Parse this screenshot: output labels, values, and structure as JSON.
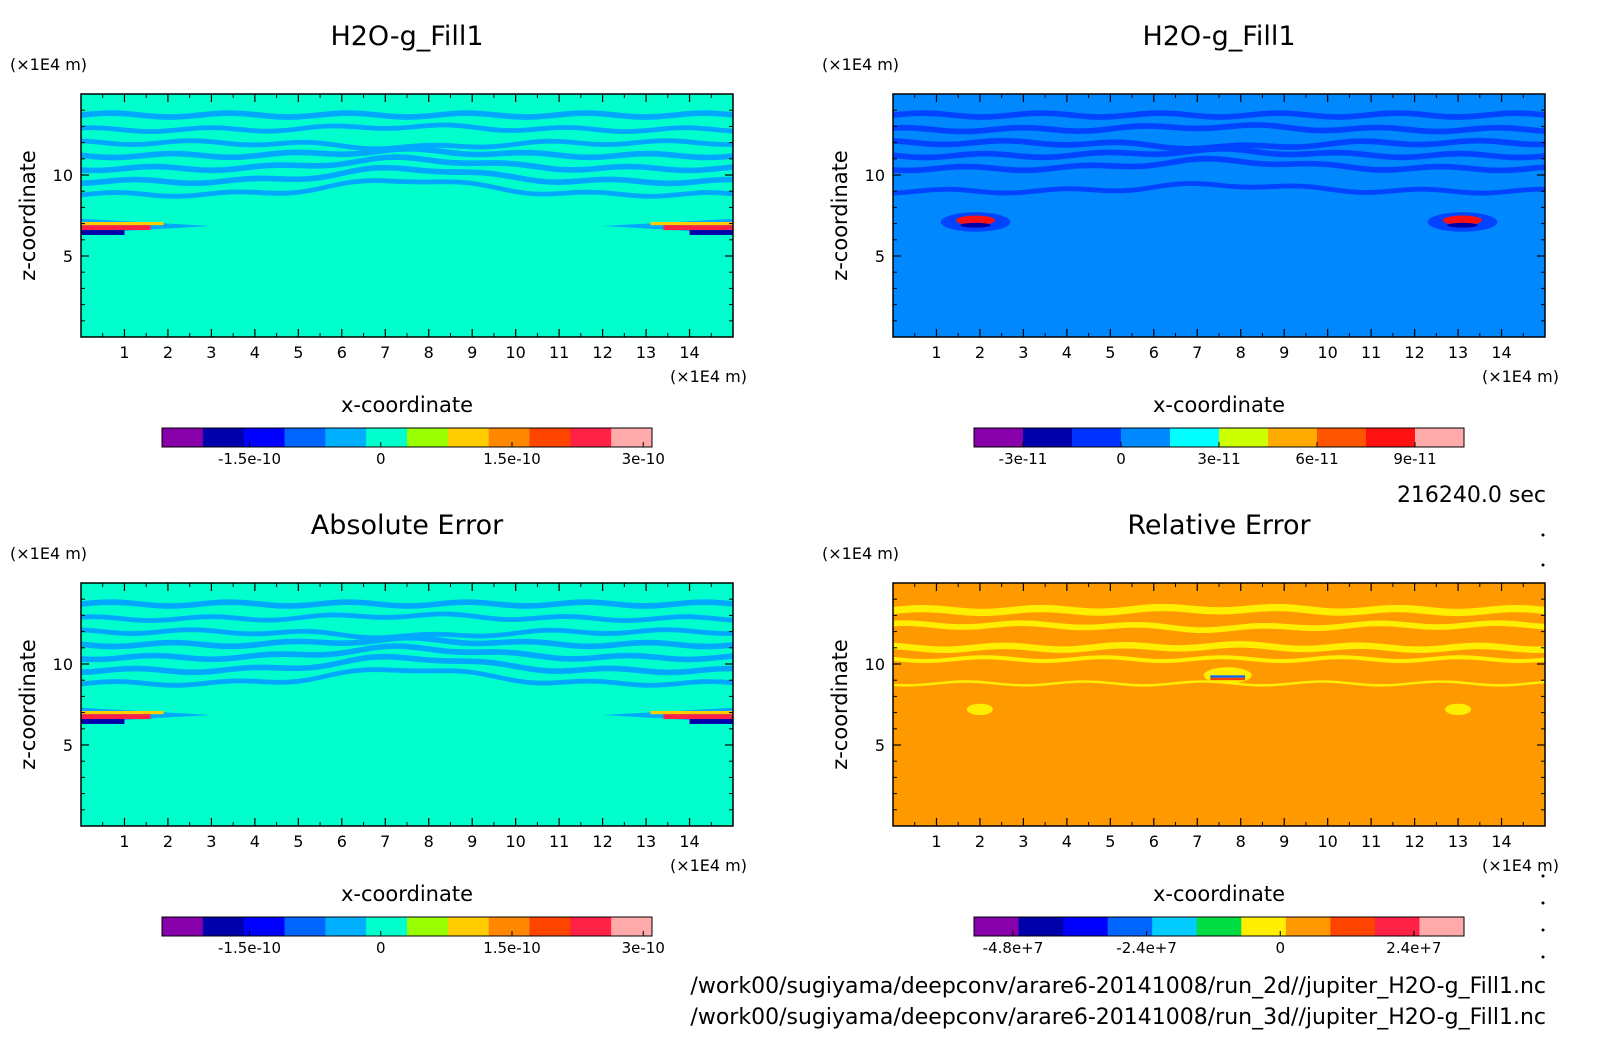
{
  "chart_data": [
    {
      "type": "heatmap",
      "title": "H2O-g_Fill1",
      "xlabel": "x-coordinate",
      "ylabel": "z-coordinate",
      "x_unit": "(×1E4 m)",
      "y_unit": "(×1E4 m)",
      "xlim": [
        0,
        15
      ],
      "ylim": [
        0,
        15
      ],
      "x_ticks": [
        "1",
        "2",
        "3",
        "4",
        "5",
        "6",
        "7",
        "8",
        "9",
        "10",
        "11",
        "12",
        "13",
        "14"
      ],
      "y_ticks": [
        "5",
        "10"
      ],
      "background": "#00ffcc",
      "bands": [
        {
          "z": 13.7,
          "w": 0.35,
          "amp": 0.0,
          "color": "#00a8ff"
        },
        {
          "z": 12.8,
          "w": 0.3,
          "amp": 0.2,
          "color": "#00a8ff"
        },
        {
          "z": 12.0,
          "w": 0.3,
          "amp": -0.3,
          "color": "#00a8ff"
        },
        {
          "z": 11.2,
          "w": 0.35,
          "amp": 0.3,
          "color": "#00a8ff"
        },
        {
          "z": 10.4,
          "w": 0.35,
          "amp": 0.6,
          "color": "#00a8ff"
        },
        {
          "z": 9.6,
          "w": 0.35,
          "amp": 0.8,
          "color": "#00a8ff"
        },
        {
          "z": 8.8,
          "w": 0.3,
          "amp": 0.9,
          "color": "#00a8ff"
        }
      ],
      "colorbar": {
        "colors": [
          "#8800aa",
          "#0000aa",
          "#0000ff",
          "#0066ff",
          "#00b0ff",
          "#00ffcc",
          "#99ff00",
          "#ffcc00",
          "#ff8800",
          "#ff4400",
          "#ff2244",
          "#ffaaaa"
        ],
        "tick_labels": [
          "-1.5e-10",
          "0",
          "1.5e-10",
          "3e-10"
        ],
        "tick_values": [
          -1.5e-10,
          0,
          1.5e-10,
          3e-10
        ],
        "range": [
          -2.5e-10,
          3.1e-10
        ]
      }
    },
    {
      "type": "heatmap",
      "title": "H2O-g_Fill1",
      "xlabel": "x-coordinate",
      "ylabel": "z-coordinate",
      "x_unit": "(×1E4 m)",
      "y_unit": "(×1E4 m)",
      "xlim": [
        0,
        15
      ],
      "ylim": [
        0,
        15
      ],
      "x_ticks": [
        "1",
        "2",
        "3",
        "4",
        "5",
        "6",
        "7",
        "8",
        "9",
        "10",
        "11",
        "12",
        "13",
        "14"
      ],
      "y_ticks": [
        "5",
        "10"
      ],
      "background": "#0088ff",
      "bands": [
        {
          "z": 13.7,
          "w": 0.35,
          "amp": 0.0,
          "color": "#0044ff"
        },
        {
          "z": 12.8,
          "w": 0.35,
          "amp": 0.2,
          "color": "#0044ff"
        },
        {
          "z": 12.0,
          "w": 0.35,
          "amp": -0.3,
          "color": "#0044ff"
        },
        {
          "z": 11.2,
          "w": 0.35,
          "amp": 0.3,
          "color": "#0044ff"
        },
        {
          "z": 10.4,
          "w": 0.35,
          "amp": 0.5,
          "color": "#0044ff"
        },
        {
          "z": 9.0,
          "w": 0.3,
          "amp": 0.4,
          "color": "#0044ff"
        }
      ],
      "colorbar": {
        "colors": [
          "#8800aa",
          "#0000aa",
          "#0033ff",
          "#0088ff",
          "#00ffff",
          "#ccff00",
          "#ffaa00",
          "#ff5500",
          "#ff1111",
          "#ffaaaa"
        ],
        "tick_labels": [
          "-3e-11",
          "0",
          "3e-11",
          "6e-11",
          "9e-11"
        ],
        "tick_values": [
          -3e-11,
          0,
          3e-11,
          6e-11,
          9e-11
        ],
        "range": [
          -4.5e-11,
          1.05e-10
        ]
      }
    },
    {
      "type": "heatmap",
      "title": "Absolute Error",
      "xlabel": "x-coordinate",
      "ylabel": "z-coordinate",
      "x_unit": "(×1E4 m)",
      "y_unit": "(×1E4 m)",
      "xlim": [
        0,
        15
      ],
      "ylim": [
        0,
        15
      ],
      "x_ticks": [
        "1",
        "2",
        "3",
        "4",
        "5",
        "6",
        "7",
        "8",
        "9",
        "10",
        "11",
        "12",
        "13",
        "14"
      ],
      "y_ticks": [
        "5",
        "10"
      ],
      "background": "#00ffcc",
      "bands": [
        {
          "z": 13.7,
          "w": 0.35,
          "amp": 0.0,
          "color": "#00a8ff"
        },
        {
          "z": 12.8,
          "w": 0.3,
          "amp": 0.2,
          "color": "#00a8ff"
        },
        {
          "z": 12.0,
          "w": 0.3,
          "amp": -0.3,
          "color": "#00a8ff"
        },
        {
          "z": 11.2,
          "w": 0.35,
          "amp": 0.3,
          "color": "#00a8ff"
        },
        {
          "z": 10.4,
          "w": 0.35,
          "amp": 0.6,
          "color": "#00a8ff"
        },
        {
          "z": 9.6,
          "w": 0.35,
          "amp": 0.8,
          "color": "#00a8ff"
        },
        {
          "z": 8.8,
          "w": 0.3,
          "amp": 0.9,
          "color": "#00a8ff"
        }
      ],
      "colorbar": {
        "colors": [
          "#8800aa",
          "#0000aa",
          "#0000ff",
          "#0066ff",
          "#00b0ff",
          "#00ffcc",
          "#99ff00",
          "#ffcc00",
          "#ff8800",
          "#ff4400",
          "#ff2244",
          "#ffaaaa"
        ],
        "tick_labels": [
          "-1.5e-10",
          "0",
          "1.5e-10",
          "3e-10"
        ],
        "tick_values": [
          -1.5e-10,
          0,
          1.5e-10,
          3e-10
        ],
        "range": [
          -2.5e-10,
          3.1e-10
        ]
      }
    },
    {
      "type": "heatmap",
      "title": "Relative Error",
      "xlabel": "x-coordinate",
      "ylabel": "z-coordinate",
      "x_unit": "(×1E4 m)",
      "y_unit": "(×1E4 m)",
      "xlim": [
        0,
        15
      ],
      "ylim": [
        0,
        15
      ],
      "x_ticks": [
        "1",
        "2",
        "3",
        "4",
        "5",
        "6",
        "7",
        "8",
        "9",
        "10",
        "11",
        "12",
        "13",
        "14"
      ],
      "y_ticks": [
        "5",
        "10"
      ],
      "background": "#ff9900",
      "bands": [
        {
          "z": 13.3,
          "w": 0.45,
          "amp": 0.1,
          "color": "#ffee00"
        },
        {
          "z": 12.4,
          "w": 0.35,
          "amp": -0.2,
          "color": "#ffee00"
        },
        {
          "z": 11.0,
          "w": 0.4,
          "amp": 0.1,
          "color": "#ffee00"
        },
        {
          "z": 10.3,
          "w": 0.25,
          "amp": 0.0,
          "color": "#ffee00"
        },
        {
          "z": 8.8,
          "w": 0.15,
          "amp": 0.0,
          "color": "#ffee00"
        }
      ],
      "colorbar": {
        "colors": [
          "#8800aa",
          "#0000aa",
          "#0000ff",
          "#0066ff",
          "#00ccff",
          "#00dd44",
          "#ffee00",
          "#ff9900",
          "#ff4400",
          "#ff2244",
          "#ffaaaa"
        ],
        "tick_labels": [
          "-4.8e+7",
          "-2.4e+7",
          "0",
          "2.4e+7"
        ],
        "tick_values": [
          -48000000.0,
          -24000000.0,
          0,
          24000000.0
        ],
        "range": [
          -55000000.0,
          33000000.0
        ]
      }
    }
  ],
  "time_label": "216240.0 sec",
  "footer": {
    "line1": "/work00/sugiyama/deepconv/arare6-20141008/run_2d//jupiter_H2O-g_Fill1.nc",
    "line2": "/work00/sugiyama/deepconv/arare6-20141008/run_3d//jupiter_H2O-g_Fill1.nc"
  }
}
